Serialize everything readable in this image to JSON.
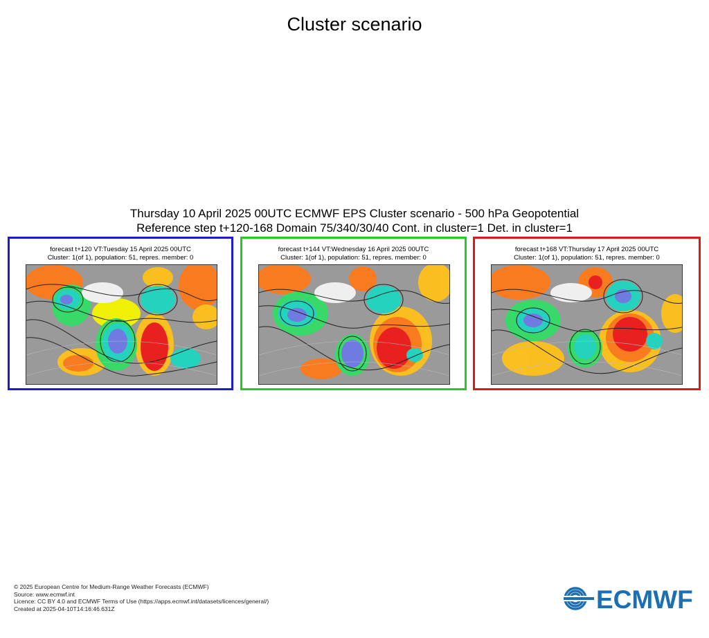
{
  "page_title": "Cluster scenario",
  "heading": {
    "line1": "Thursday 10 April 2025 00UTC ECMWF EPS Cluster scenario - 500 hPa Geopotential",
    "line2": "Reference step t+120-168 Domain 75/340/30/40 Cont. in cluster=1 Det. in cluster=1"
  },
  "panels": [
    {
      "frame_color": "#1a1ad6",
      "line1": "forecast t+120 VT:Tuesday 15 April 2025 00UTC",
      "line2": "Cluster: 1(of 1), population: 51, repres. member: 0"
    },
    {
      "frame_color": "#22cc22",
      "line1": "forecast t+144 VT:Wednesday 16 April 2025 00UTC",
      "line2": "Cluster: 1(of 1), population: 51, repres. member: 0"
    },
    {
      "frame_color": "#e01818",
      "line1": "forecast t+168 VT:Thursday 17 April 2025 00UTC",
      "line2": "Cluster: 1(of 1), population: 51, repres. member: 0"
    }
  ],
  "footer": {
    "copyright": "© 2025 European Centre for Medium-Range Weather Forecasts (ECMWF)",
    "source": "Source: www.ecmwf.int",
    "licence": "Licence: CC BY 4.0 and ECMWF Terms of Use (https://apps.ecmwf.int/datasets/licences/general/)",
    "created": "Created at 2025-04-10T14:16:46.631Z"
  },
  "logo": {
    "text": "ECMWF",
    "color": "#1d6fb3"
  },
  "anomaly_colors": {
    "strong_positive": "#ee1a1a",
    "positive": "#ff7a1a",
    "weak_positive": "#ffc21a",
    "slight_positive": "#f5f500",
    "neutral": "#9a9a9a",
    "slight_negative": "#33dd66",
    "negative": "#1ed6c0",
    "strong_negative": "#3ab0d8",
    "very_strong_negative": "#6e7ae6"
  }
}
